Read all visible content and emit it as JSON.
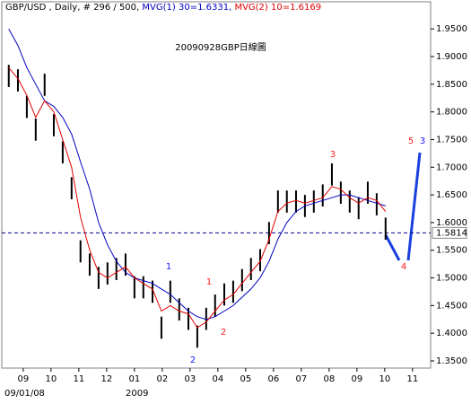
{
  "chart_data": {
    "type": "ohlc",
    "title": "20090928GBP日線圖",
    "symbol_info": "GBP/USD , Daily, # 296 / 500,",
    "x": [
      -0.52,
      -0.19,
      0.13,
      0.45,
      0.77,
      1.1,
      1.42,
      1.74,
      2.06,
      2.39,
      2.71,
      3.03,
      3.35,
      3.68,
      4.0,
      4.32,
      4.65,
      4.97,
      5.29,
      5.61,
      5.94,
      6.26,
      6.58,
      6.9,
      7.23,
      7.55,
      7.87,
      8.19,
      8.52,
      8.84,
      9.16,
      9.48,
      9.81,
      10.13,
      10.45,
      10.77,
      11.1,
      11.42,
      11.74,
      12.06,
      12.39,
      12.71,
      13.03
    ],
    "high": [
      1.885,
      1.877,
      1.829,
      1.788,
      1.869,
      1.796,
      1.747,
      1.682,
      1.568,
      1.544,
      1.52,
      1.528,
      1.536,
      1.544,
      1.503,
      1.503,
      1.495,
      1.43,
      1.495,
      1.463,
      1.446,
      1.414,
      1.446,
      1.47,
      1.49,
      1.495,
      1.516,
      1.536,
      1.552,
      1.601,
      1.658,
      1.658,
      1.658,
      1.65,
      1.658,
      1.669,
      1.707,
      1.674,
      1.658,
      1.646,
      1.674,
      1.653,
      1.609
    ],
    "low": [
      1.845,
      1.837,
      1.789,
      1.748,
      1.829,
      1.756,
      1.707,
      1.642,
      1.528,
      1.504,
      1.48,
      1.488,
      1.496,
      1.504,
      1.463,
      1.463,
      1.455,
      1.39,
      1.455,
      1.423,
      1.406,
      1.374,
      1.406,
      1.43,
      1.45,
      1.455,
      1.476,
      1.496,
      1.512,
      1.561,
      1.618,
      1.618,
      1.618,
      1.61,
      1.618,
      1.629,
      1.667,
      1.634,
      1.618,
      1.606,
      1.634,
      1.613,
      1.569
    ],
    "bar_color": "#000000",
    "series": [
      {
        "name": "MVG(1) 30=1.6331,",
        "color": "#0000c0",
        "values": [
          1.95,
          1.92,
          1.88,
          1.85,
          1.82,
          1.81,
          1.79,
          1.76,
          1.71,
          1.66,
          1.6,
          1.56,
          1.53,
          1.51,
          1.5,
          1.495,
          1.49,
          1.48,
          1.47,
          1.455,
          1.44,
          1.43,
          1.425,
          1.43,
          1.44,
          1.45,
          1.465,
          1.48,
          1.5,
          1.53,
          1.57,
          1.6,
          1.62,
          1.63,
          1.635,
          1.64,
          1.645,
          1.65,
          1.65,
          1.645,
          1.64,
          1.635,
          1.63
        ]
      },
      {
        "name": "MVG(2) 10=1.6169",
        "color": "#e00000",
        "values": [
          1.88,
          1.86,
          1.83,
          1.79,
          1.82,
          1.8,
          1.75,
          1.7,
          1.61,
          1.55,
          1.51,
          1.5,
          1.51,
          1.52,
          1.5,
          1.49,
          1.48,
          1.44,
          1.45,
          1.44,
          1.435,
          1.41,
          1.42,
          1.44,
          1.46,
          1.47,
          1.49,
          1.51,
          1.53,
          1.57,
          1.62,
          1.635,
          1.64,
          1.635,
          1.64,
          1.645,
          1.665,
          1.66,
          1.645,
          1.635,
          1.645,
          1.64,
          1.62
        ]
      }
    ],
    "reference_line": {
      "value": 1.5814,
      "label": "1.5814",
      "color": "#00008b"
    },
    "xlim": [
      -0.77,
      14.65
    ],
    "ylim": [
      1.337,
      1.999
    ],
    "xticks": [
      {
        "value": 0,
        "label": "09"
      },
      {
        "value": 1,
        "label": "10"
      },
      {
        "value": 2,
        "label": "11"
      },
      {
        "value": 3,
        "label": "12"
      },
      {
        "value": 4,
        "label": "01"
      },
      {
        "value": 5,
        "label": "02"
      },
      {
        "value": 6,
        "label": "03"
      },
      {
        "value": 7,
        "label": "04"
      },
      {
        "value": 8,
        "label": "05"
      },
      {
        "value": 9,
        "label": "06"
      },
      {
        "value": 10,
        "label": "07"
      },
      {
        "value": 11,
        "label": "08"
      },
      {
        "value": 12,
        "label": "09"
      },
      {
        "value": 13,
        "label": "10"
      },
      {
        "value": 14,
        "label": "11"
      }
    ],
    "yticks": [
      {
        "value": 1.35,
        "label": "1.3500"
      },
      {
        "value": 1.4,
        "label": "1.4000"
      },
      {
        "value": 1.45,
        "label": "1.4500"
      },
      {
        "value": 1.5,
        "label": "1.5000"
      },
      {
        "value": 1.55,
        "label": "1.5500"
      },
      {
        "value": 1.6,
        "label": "1.6000"
      },
      {
        "value": 1.65,
        "label": "1.6500"
      },
      {
        "value": 1.7,
        "label": "1.7000"
      },
      {
        "value": 1.75,
        "label": "1.7500"
      },
      {
        "value": 1.8,
        "label": "1.8000"
      },
      {
        "value": 1.85,
        "label": "1.8500"
      },
      {
        "value": 1.9,
        "label": "1.9000"
      },
      {
        "value": 1.95,
        "label": "1.9500"
      }
    ],
    "date_labels": [
      "09/01/08",
      "2009"
    ],
    "annotations": [
      {
        "text": "1",
        "color": "#1a1aff"
      },
      {
        "text": "2",
        "color": "#1a1aff"
      },
      {
        "text": "1",
        "color": "#ff2020"
      },
      {
        "text": "2",
        "color": "#ff2020"
      },
      {
        "text": "3",
        "color": "#ff2020"
      },
      {
        "text": "4",
        "color": "#ff2020"
      },
      {
        "text": "5",
        "color": "#ff2020"
      },
      {
        "text": "3",
        "color": "#1a1aff"
      }
    ]
  }
}
